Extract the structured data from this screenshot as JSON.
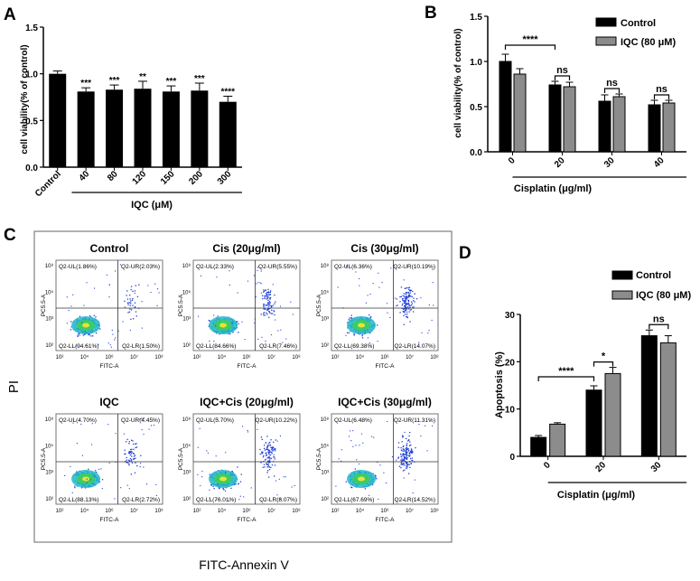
{
  "panel_labels": [
    "A",
    "B",
    "C",
    "D"
  ],
  "flow_axes": {
    "y_label": "PI",
    "x_label": "FITC-Annexin V",
    "plot_x": "FITC-A",
    "plot_y": "PC5.5-A",
    "tick_labels": [
      "10²",
      "10³",
      "10⁴",
      "10⁵",
      "10⁶",
      "10⁷",
      "10⁸"
    ]
  },
  "flow_plots": [
    {
      "title": "Control",
      "ul": "Q2-UL(1.86%)",
      "ur": "Q2-UR(2.03%)",
      "ll": "Q2-LL(94.61%)",
      "lr": "Q2-LR(1.50%)",
      "upper_density": 0.25
    },
    {
      "title": "Cis (20μg/ml)",
      "ul": "Q2-UL(2.33%)",
      "ur": "Q2-UR(5.55%)",
      "ll": "Q2-LL(84.66%)",
      "lr": "Q2-LR(7.46%)",
      "upper_density": 0.6
    },
    {
      "title": "Cis (30μg/ml)",
      "ul": "Q2-UL(6.36%)",
      "ur": "Q2-UR(10.19%)",
      "ll": "Q2-LL(69.38%)",
      "lr": "Q2-LR(14.07%)",
      "upper_density": 0.9
    },
    {
      "title": "IQC",
      "ul": "Q2-UL(4.70%)",
      "ur": "Q2-UR(4.45%)",
      "ll": "Q2-LL(88.13%)",
      "lr": "Q2-LR(2.72%)",
      "upper_density": 0.4
    },
    {
      "title": "IQC+Cis (20μg/ml)",
      "ul": "Q2-UL(5.70%)",
      "ur": "Q2-UR(10.22%)",
      "ll": "Q2-LL(76.01%)",
      "lr": "Q2-LR(8.07%)",
      "upper_density": 0.75
    },
    {
      "title": "IQC+Cis (30μg/ml)",
      "ul": "Q2-UL(6.48%)",
      "ur": "Q2-UR(11.31%)",
      "ll": "Q2-LL(67.69%)",
      "lr": "Q2-LR(14.52%)",
      "upper_density": 0.95
    }
  ],
  "colors": {
    "control": "#000000",
    "iqc": "#8c8c8c",
    "scatter": "#1f3fd6"
  },
  "chart_data": [
    {
      "panel": "A",
      "type": "bar",
      "categories": [
        "Control",
        "40",
        "80",
        "120",
        "150",
        "200",
        "300"
      ],
      "values": [
        1.0,
        0.81,
        0.83,
        0.84,
        0.81,
        0.82,
        0.7
      ],
      "errors": [
        0.03,
        0.04,
        0.05,
        0.08,
        0.06,
        0.08,
        0.06
      ],
      "significance": [
        "",
        "***",
        "***",
        "**",
        "***",
        "***",
        "****"
      ],
      "ylabel": "cell viability(% of control)",
      "xlabel": "IQC (μM)",
      "ylim": [
        0,
        1.5
      ],
      "yticks": [
        "0.0",
        "0.5",
        "1.0",
        "1.5"
      ]
    },
    {
      "panel": "B",
      "type": "bar",
      "categories": [
        "0",
        "20",
        "30",
        "40"
      ],
      "series": [
        {
          "name": "Control",
          "values": [
            1.0,
            0.74,
            0.56,
            0.52
          ],
          "errors": [
            0.08,
            0.04,
            0.07,
            0.05
          ]
        },
        {
          "name": "IQC (80 μM)",
          "values": [
            0.86,
            0.72,
            0.61,
            0.54
          ],
          "errors": [
            0.06,
            0.05,
            0.03,
            0.03
          ]
        }
      ],
      "comparisons": [
        "****",
        "ns",
        "ns",
        "ns"
      ],
      "ylabel": "cell viability(% of control)",
      "xlabel": "Cisplatin (μg/ml)",
      "ylim": [
        0,
        1.5
      ],
      "yticks": [
        "0.0",
        "0.5",
        "1.0",
        "1.5"
      ],
      "legend": "top-right"
    },
    {
      "panel": "D",
      "type": "bar",
      "categories": [
        "0",
        "20",
        "30"
      ],
      "series": [
        {
          "name": "Control",
          "values": [
            4.0,
            14.0,
            25.5
          ],
          "errors": [
            0.4,
            0.9,
            1.2
          ]
        },
        {
          "name": "IQC (80 μM)",
          "values": [
            6.8,
            17.5,
            24.0
          ],
          "errors": [
            0.3,
            1.3,
            1.5
          ]
        }
      ],
      "comparisons": [
        "****",
        "*",
        "ns"
      ],
      "ylabel": "Apoptosis (%)",
      "xlabel": "Cisplatin (μg/ml)",
      "ylim": [
        0,
        30
      ],
      "yticks": [
        "0",
        "10",
        "20",
        "30"
      ],
      "legend": "top-right"
    }
  ]
}
